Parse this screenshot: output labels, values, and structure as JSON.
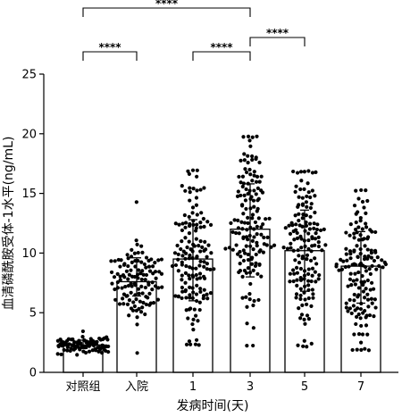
{
  "chart_data": {
    "type": "bar",
    "ylabel": "血清磷酰胺受体-1水平(ng/mL)",
    "xlabel": "发病时间(天)",
    "ylim": [
      0,
      25
    ],
    "yticks": [
      0,
      5,
      10,
      15,
      20,
      25
    ],
    "categories": [
      "对照组",
      "入院",
      "1",
      "3",
      "5",
      "7"
    ],
    "values": [
      2.3,
      7.6,
      9.5,
      12.0,
      10.2,
      8.9
    ],
    "error_upper": [
      2.7,
      9.6,
      12.8,
      15.8,
      13.6,
      11.8
    ],
    "error_lower": [
      2.0,
      6.4,
      6.0,
      8.0,
      6.8,
      5.8
    ],
    "point_ranges": [
      [
        1.5,
        3.5
      ],
      [
        1.7,
        14.3
      ],
      [
        2.3,
        16.9
      ],
      [
        2.3,
        19.7
      ],
      [
        2.2,
        16.8
      ],
      [
        1.9,
        15.3
      ]
    ],
    "points_per_group": [
      90,
      120,
      150,
      150,
      150,
      150
    ],
    "grid": false,
    "significance": [
      {
        "from": "对照组",
        "to": "3",
        "label": "****"
      },
      {
        "from": "对照组",
        "to": "入院",
        "label": "****"
      },
      {
        "from": "1",
        "to": "3",
        "label": "****"
      },
      {
        "from": "3",
        "to": "5",
        "label": "****"
      }
    ]
  }
}
